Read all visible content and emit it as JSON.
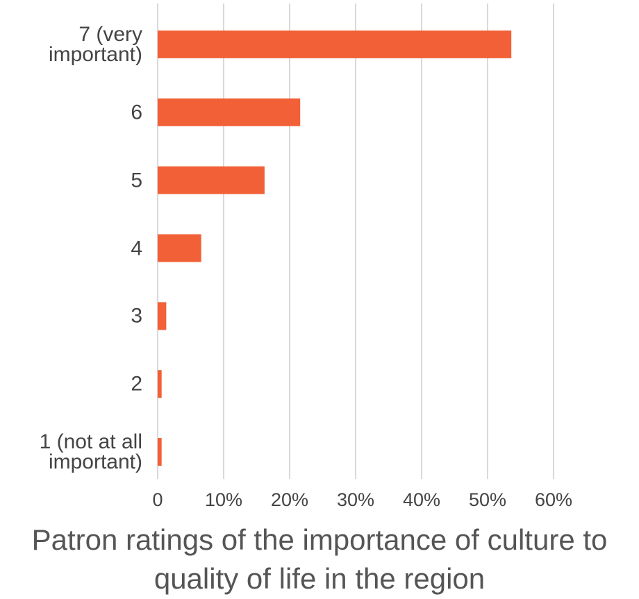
{
  "chart_data": {
    "type": "bar",
    "orientation": "horizontal",
    "title": "Patron ratings of the importance of culture to quality of life in the region",
    "categories": [
      "7 (very important)",
      "6",
      "5",
      "4",
      "3",
      "2",
      "1 (not at all important)"
    ],
    "values": [
      53.6,
      21.6,
      16.2,
      6.6,
      1.3,
      0.6,
      0.6
    ],
    "color": "#f26038",
    "xlim": [
      0,
      60
    ],
    "xticks": [
      0,
      {
        "value": 10,
        "label": "10%"
      },
      {
        "value": 20,
        "label": "20%"
      },
      {
        "value": 30,
        "label": "30%"
      },
      {
        "value": 40,
        "label": "40%"
      },
      {
        "value": 50,
        "label": "50%"
      },
      {
        "value": 60,
        "label": "60%"
      }
    ],
    "grid": true
  }
}
